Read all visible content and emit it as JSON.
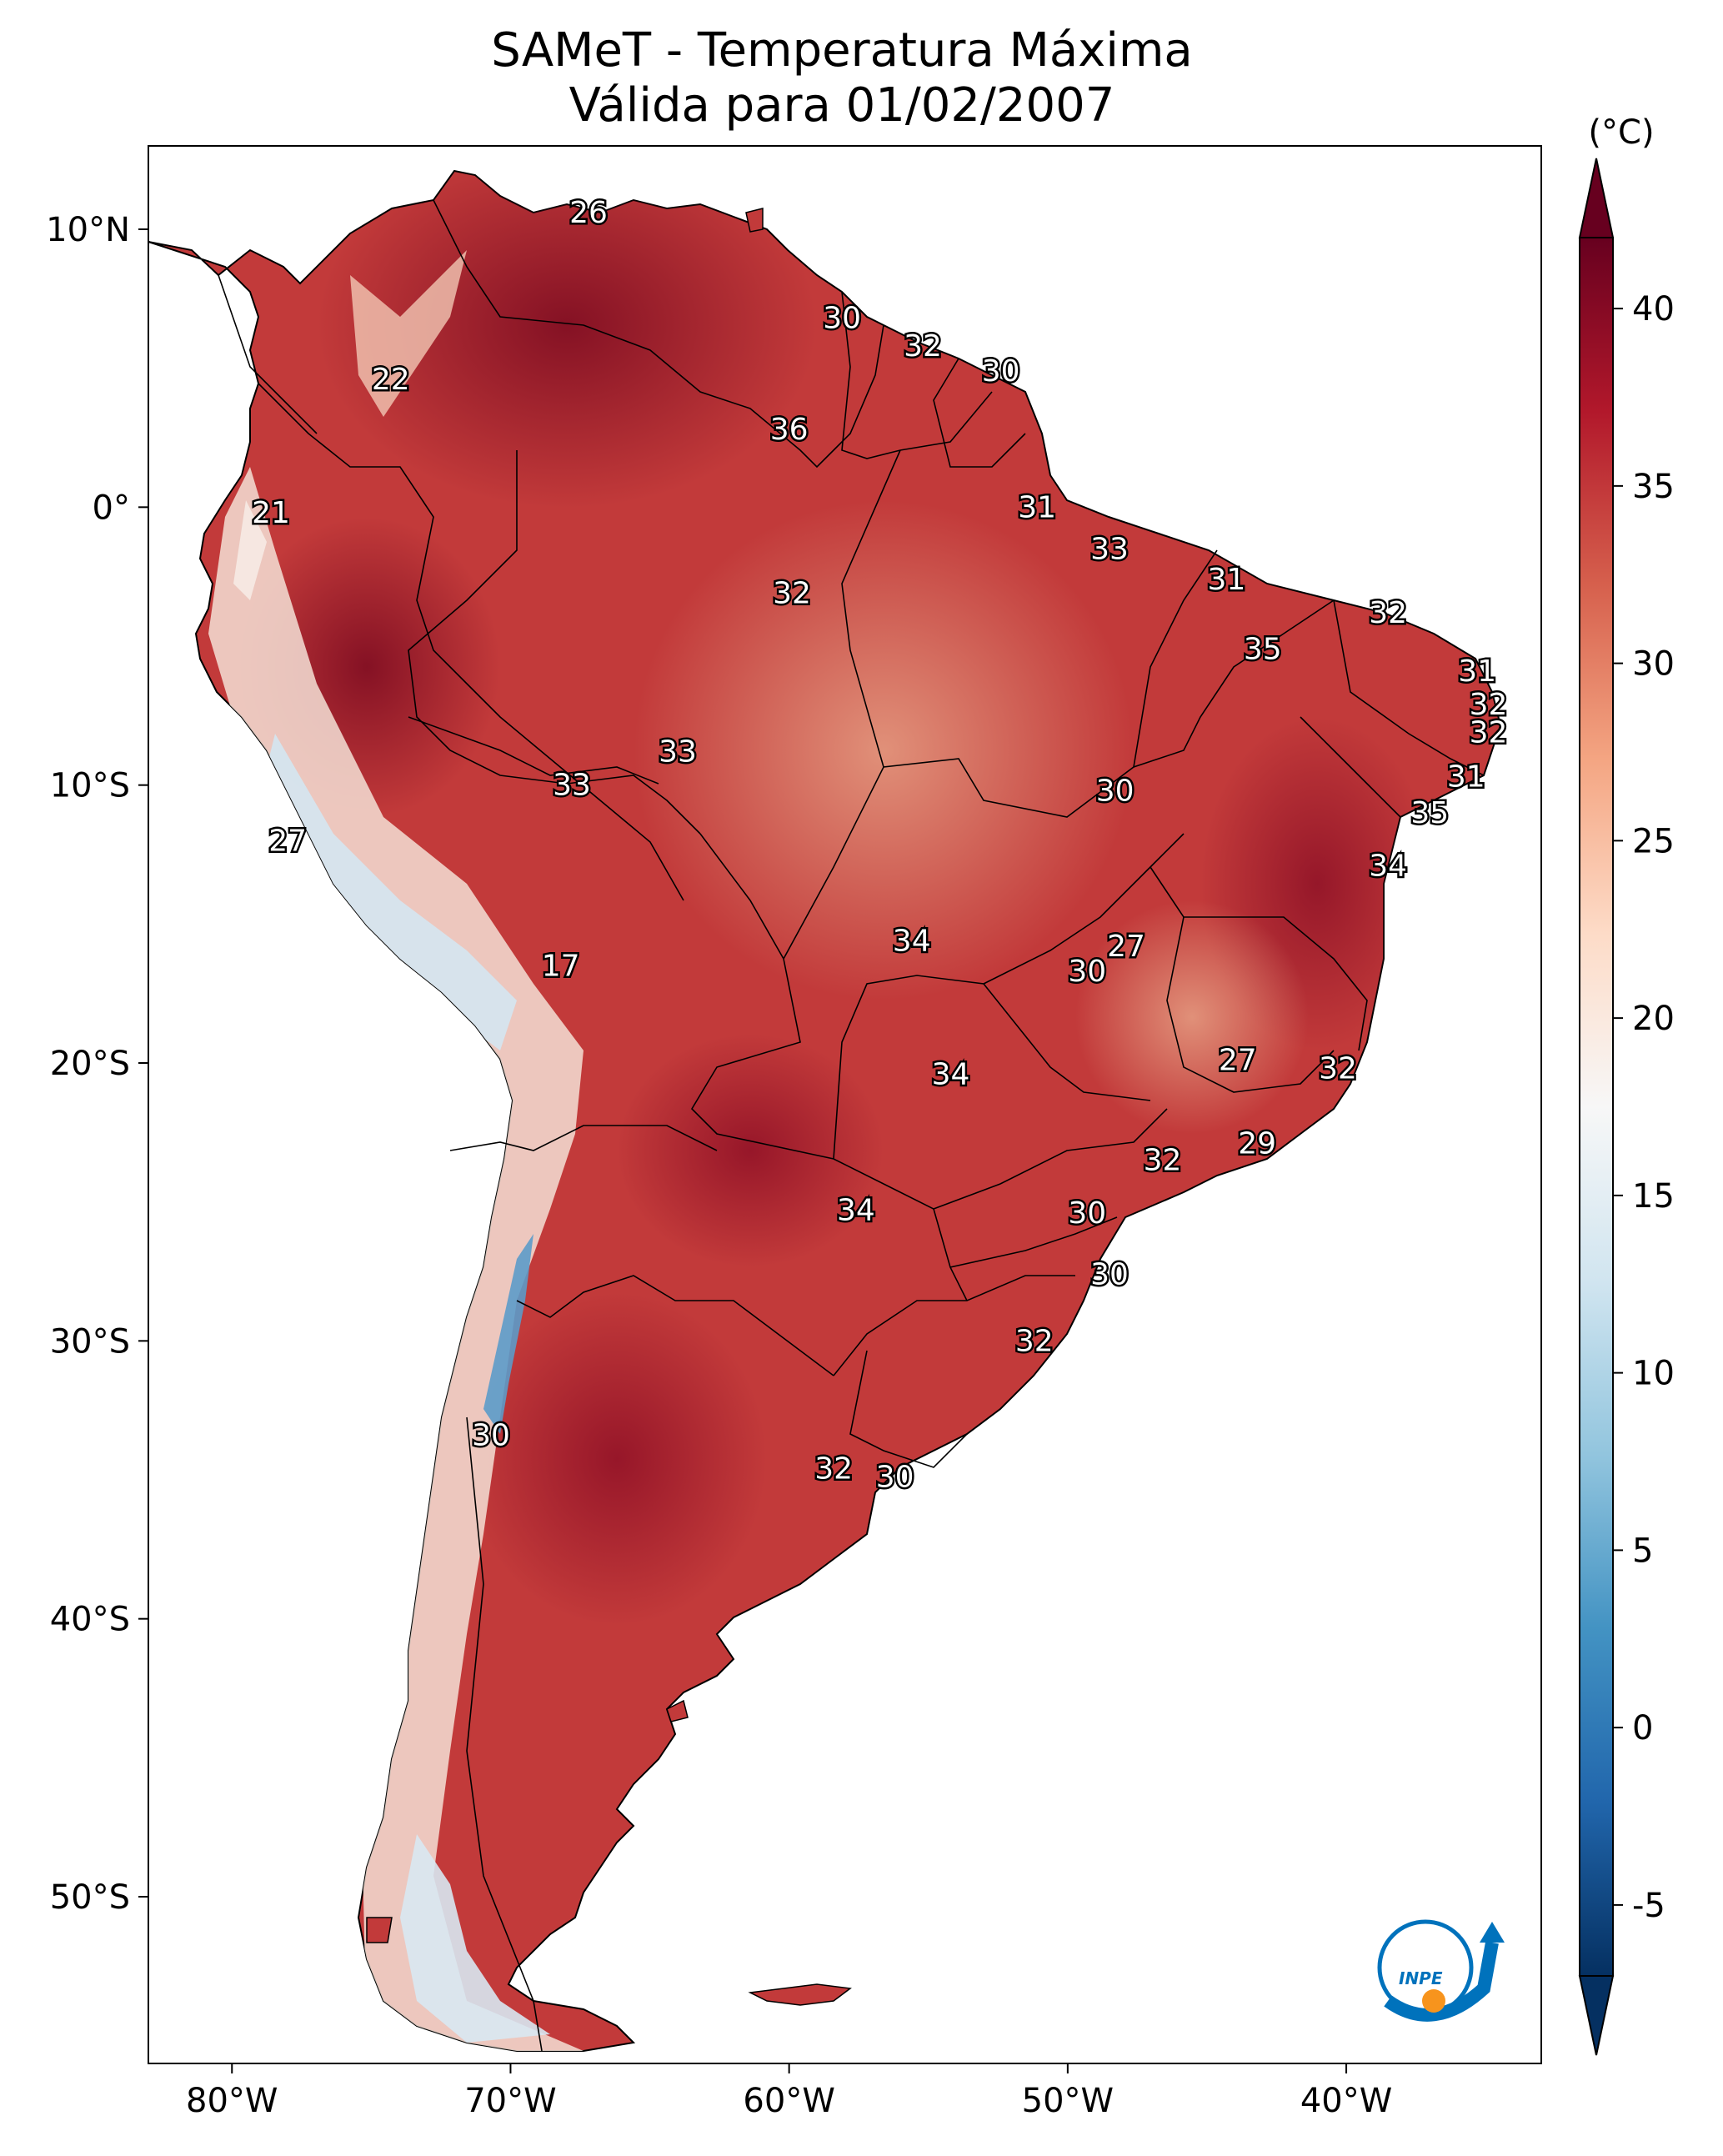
{
  "title": {
    "line1": "SAMeT - Temperatura Máxima",
    "line2": "Válida para 01/02/2007"
  },
  "map": {
    "lat_ticks": [
      {
        "value": 10,
        "label": "10°N"
      },
      {
        "value": 0,
        "label": "0°"
      },
      {
        "value": -10,
        "label": "10°S"
      },
      {
        "value": -20,
        "label": "20°S"
      },
      {
        "value": -30,
        "label": "30°S"
      },
      {
        "value": -40,
        "label": "40°S"
      },
      {
        "value": -50,
        "label": "50°S"
      }
    ],
    "lon_ticks": [
      {
        "value": -80,
        "label": "80°W"
      },
      {
        "value": -70,
        "label": "70°W"
      },
      {
        "value": -60,
        "label": "60°W"
      },
      {
        "value": -50,
        "label": "50°W"
      },
      {
        "value": -40,
        "label": "40°W"
      }
    ],
    "extent": {
      "lon_min": -83,
      "lon_max": -33,
      "lat_min": -56,
      "lat_max": 13
    }
  },
  "colorbar": {
    "unit": "(°C)",
    "min": -7,
    "max": 42,
    "ticks": [
      {
        "value": 40,
        "label": "40"
      },
      {
        "value": 35,
        "label": "35"
      },
      {
        "value": 30,
        "label": "30"
      },
      {
        "value": 25,
        "label": "25"
      },
      {
        "value": 20,
        "label": "20"
      },
      {
        "value": 15,
        "label": "15"
      },
      {
        "value": 10,
        "label": "10"
      },
      {
        "value": 5,
        "label": "5"
      },
      {
        "value": 0,
        "label": "0"
      },
      {
        "value": -5,
        "label": "-5"
      }
    ],
    "colors": [
      "#053061",
      "#2166ac",
      "#4393c3",
      "#92c5de",
      "#d1e5f0",
      "#f7f7f7",
      "#fddbc7",
      "#f4a582",
      "#d6604d",
      "#b2182b",
      "#67001f"
    ]
  },
  "temperature_labels": [
    {
      "lon": -67.2,
      "lat": 10.6,
      "value": "26"
    },
    {
      "lon": -74.3,
      "lat": 4.6,
      "value": "22"
    },
    {
      "lon": -78.6,
      "lat": -0.2,
      "value": "21"
    },
    {
      "lon": -58.1,
      "lat": 6.8,
      "value": "30"
    },
    {
      "lon": -55.2,
      "lat": 5.8,
      "value": "32"
    },
    {
      "lon": -52.4,
      "lat": 4.9,
      "value": "30"
    },
    {
      "lon": -60.0,
      "lat": 2.8,
      "value": "36"
    },
    {
      "lon": -51.1,
      "lat": 0.0,
      "value": "31"
    },
    {
      "lon": -48.5,
      "lat": -1.5,
      "value": "33"
    },
    {
      "lon": -44.3,
      "lat": -2.6,
      "value": "31"
    },
    {
      "lon": -59.9,
      "lat": -3.1,
      "value": "32"
    },
    {
      "lon": -38.5,
      "lat": -3.8,
      "value": "32"
    },
    {
      "lon": -43.0,
      "lat": -5.1,
      "value": "35"
    },
    {
      "lon": -35.3,
      "lat": -5.9,
      "value": "31"
    },
    {
      "lon": -34.9,
      "lat": -7.1,
      "value": "32"
    },
    {
      "lon": -34.9,
      "lat": -8.1,
      "value": "32"
    },
    {
      "lon": -64.0,
      "lat": -8.8,
      "value": "33"
    },
    {
      "lon": -67.8,
      "lat": -10.0,
      "value": "33"
    },
    {
      "lon": -48.3,
      "lat": -10.2,
      "value": "30"
    },
    {
      "lon": -35.7,
      "lat": -9.7,
      "value": "31"
    },
    {
      "lon": -37.0,
      "lat": -11.0,
      "value": "35"
    },
    {
      "lon": -78.0,
      "lat": -12.0,
      "value": "27"
    },
    {
      "lon": -38.5,
      "lat": -12.9,
      "value": "34"
    },
    {
      "lon": -55.6,
      "lat": -15.6,
      "value": "34"
    },
    {
      "lon": -47.9,
      "lat": -15.8,
      "value": "27"
    },
    {
      "lon": -49.3,
      "lat": -16.7,
      "value": "30"
    },
    {
      "lon": -68.2,
      "lat": -16.5,
      "value": "17"
    },
    {
      "lon": -54.2,
      "lat": -20.4,
      "value": "34"
    },
    {
      "lon": -43.9,
      "lat": -19.9,
      "value": "27"
    },
    {
      "lon": -40.3,
      "lat": -20.2,
      "value": "32"
    },
    {
      "lon": -43.2,
      "lat": -22.9,
      "value": "29"
    },
    {
      "lon": -46.6,
      "lat": -23.5,
      "value": "32"
    },
    {
      "lon": -57.6,
      "lat": -25.3,
      "value": "34"
    },
    {
      "lon": -49.3,
      "lat": -25.4,
      "value": "30"
    },
    {
      "lon": -48.5,
      "lat": -27.6,
      "value": "30"
    },
    {
      "lon": -51.2,
      "lat": -30.0,
      "value": "32"
    },
    {
      "lon": -70.7,
      "lat": -33.4,
      "value": "30"
    },
    {
      "lon": -58.4,
      "lat": -34.6,
      "value": "32"
    },
    {
      "lon": -56.2,
      "lat": -34.9,
      "value": "30"
    }
  ],
  "logo": {
    "text": "INPE"
  }
}
